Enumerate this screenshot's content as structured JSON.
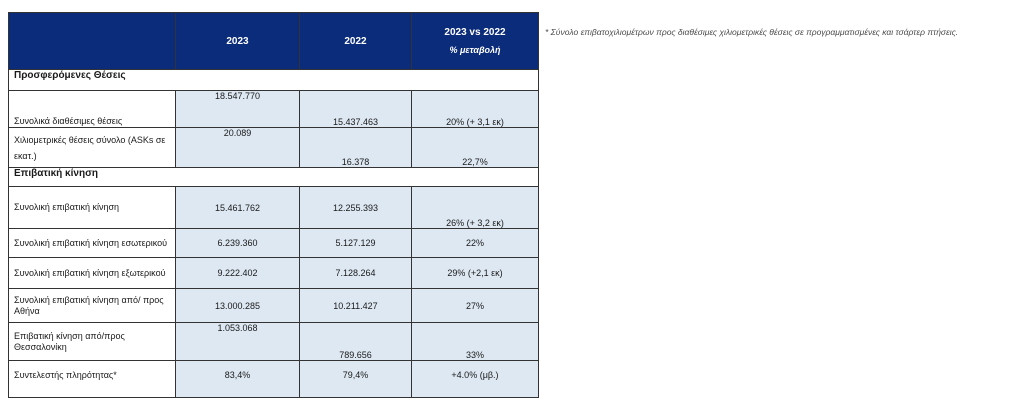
{
  "header": {
    "col_2023": "2023",
    "col_2022": "2022",
    "col_change": "2023 vs 2022",
    "col_change_sub": "% μεταβολή"
  },
  "sections": {
    "seats": "Προσφερόμενες Θέσεις",
    "traffic": "Επιβατική κίνηση"
  },
  "rows": [
    {
      "label": "Συνολικά διαθέσιμες θέσεις",
      "v2023": "18.547.770",
      "v2022": "15.437.463",
      "change": "20% (+ 3,1 εκ)"
    },
    {
      "label": "Χιλιομετρικές θέσεις σύνολο (ASKs σε εκατ.)",
      "v2023": "20.089",
      "v2022": "16.378",
      "change": "22,7%"
    },
    {
      "label": "Συνολική επιβατική κίνηση",
      "v2023": "15.461.762",
      "v2022": "12.255.393",
      "change": "26% (+ 3,2 εκ)"
    },
    {
      "label": "Συνολική επιβατική κίνηση εσωτερικού",
      "v2023": "6.239.360",
      "v2022": "5.127.129",
      "change": "22%"
    },
    {
      "label": "Συνολική επιβατική κίνηση εξωτερικού",
      "v2023": "9.222.402",
      "v2022": "7.128.264",
      "change": "29% (+2,1 εκ)"
    },
    {
      "label": "Συνολική επιβατική κίνηση από/ προς Αθήνα",
      "v2023": "13.000.285",
      "v2022": "10.211.427",
      "change": "27%"
    },
    {
      "label": "Επιβατική κίνηση  από/προς Θεσσαλονίκη",
      "v2023": "1.053.068",
      "v2022": "789.656",
      "change": "33%"
    },
    {
      "label": "Συντελεστής πληρότητας*",
      "v2023": "83,4%",
      "v2022": "79,4%",
      "change": "+4.0% (μβ.)"
    }
  ],
  "footnote": "* Σύνολο επιβατοχιλιομέτρων προς διαθέσιμες χιλιομετρικές θέσεις σε προγραμματισμένες και τσάρτερ πτήσεις.",
  "colors": {
    "header_bg": "#0b2c7a",
    "value_cell_bg": "#dde8f2"
  }
}
